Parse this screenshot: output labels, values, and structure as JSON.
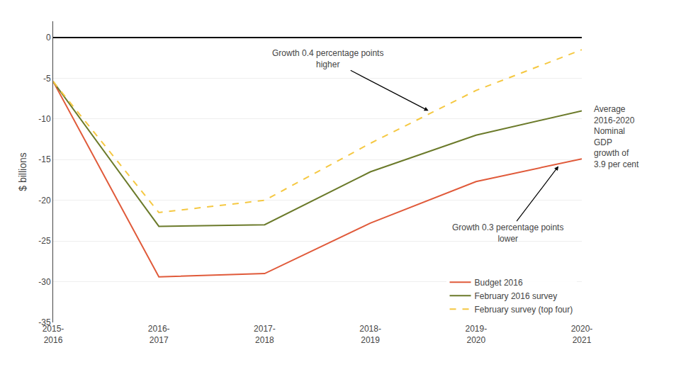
{
  "chart_data": {
    "type": "line",
    "categories": [
      "2015-\n2016",
      "2016-\n2017",
      "2017-\n2018",
      "2018-\n2019",
      "2019-\n2020",
      "2020-\n2021"
    ],
    "series": [
      {
        "name": "Budget 2016",
        "color": "#e05a3a",
        "line_style": "solid",
        "values": [
          -5.4,
          -29.4,
          -29.0,
          -22.8,
          -17.7,
          -14.9
        ]
      },
      {
        "name": "February 2016 survey",
        "color": "#6b7a2a",
        "line_style": "solid",
        "values": [
          -5.4,
          -23.2,
          -23.0,
          -16.5,
          -12.0,
          -9.0
        ]
      },
      {
        "name": "February survey (top four)",
        "color": "#f5c842",
        "line_style": "dashed",
        "values": [
          -5.4,
          -21.5,
          -20.0,
          -13.0,
          -6.5,
          -1.5
        ]
      }
    ],
    "ylabel": "$ billions",
    "ylim": [
      -35,
      2
    ],
    "yticks": [
      0,
      -5,
      -10,
      -15,
      -20,
      -25,
      -30,
      -35
    ],
    "grid": true,
    "legend": "lower right",
    "annotations": [
      "Growth 0.4 percentage points\nhigher",
      "Growth 0.3 percentage points\nlower",
      "Average\n2016-2020\nNominal\nGDP\ngrowth of\n3.9 per cent"
    ]
  }
}
